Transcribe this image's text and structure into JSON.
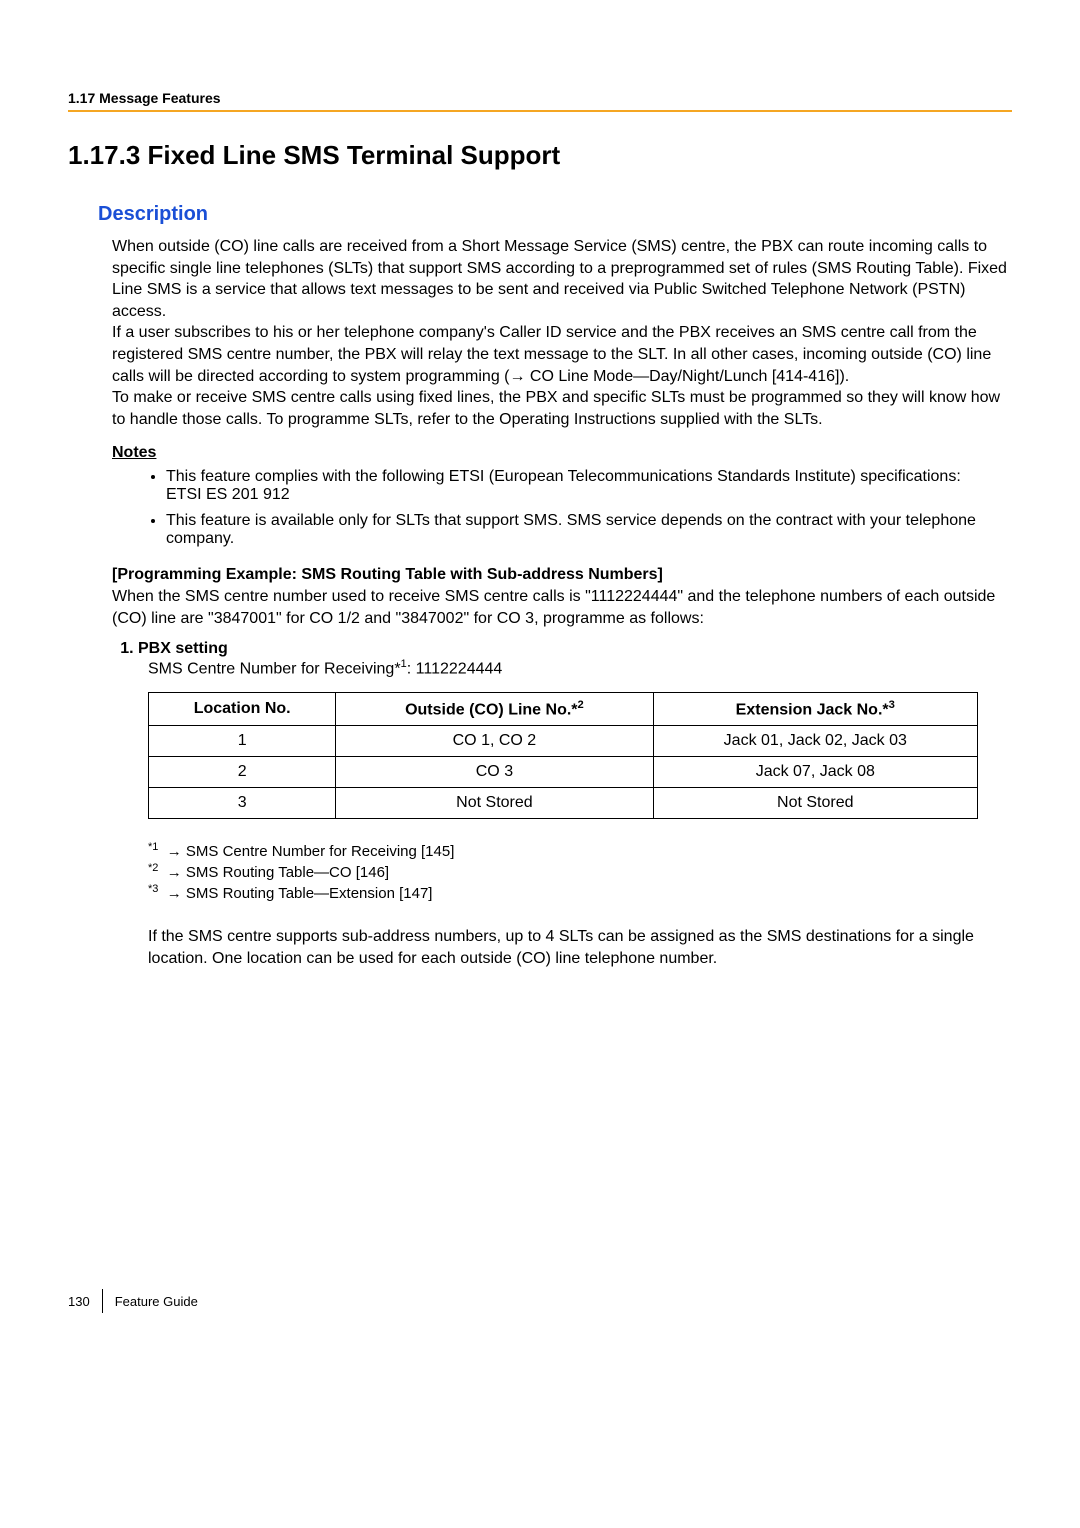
{
  "header": {
    "running": "1.17 Message Features",
    "title": "1.17.3  Fixed Line SMS Terminal Support",
    "subtitle": "Description"
  },
  "description": {
    "p1": "When outside (CO) line calls are received from a Short Message Service (SMS) centre, the PBX can route incoming calls to specific single line telephones (SLTs) that support SMS according to a preprogrammed set of rules (SMS Routing Table). Fixed Line SMS is a service that allows text messages to be sent and received via Public Switched Telephone Network (PSTN) access.",
    "p2a": "If a user subscribes to his or her telephone company's Caller ID service and the PBX receives an SMS centre call from the registered SMS centre number, the PBX will relay the text message to the SLT. In all other cases, incoming outside (CO) line calls will be directed according to system programming (",
    "p2b": " CO Line Mode—Day/Night/Lunch [414-416]).",
    "p3": "To make or receive SMS centre calls using fixed lines, the PBX and specific SLTs must be programmed so they will know how to handle those calls. To programme SLTs, refer to the Operating Instructions supplied with the SLTs."
  },
  "notes": {
    "heading": "Notes",
    "items": [
      "This feature complies with the following ETSI (European Telecommunications Standards Institute) specifications:\nETSI ES 201 912",
      "This feature is available only for SLTs that support SMS. SMS service depends on the contract with your telephone company."
    ]
  },
  "programming": {
    "heading": "[Programming Example: SMS Routing Table with Sub-address Numbers]",
    "intro": "When the SMS centre number used to receive SMS centre calls is \"1112224444\" and the telephone numbers of each outside (CO) line are \"3847001\" for CO 1/2 and \"3847002\" for CO 3, programme as follows:",
    "step_label": "PBX setting",
    "step_body_a": "SMS Centre Number for Receiving*",
    "step_body_sup": "1",
    "step_body_b": ": 1112224444"
  },
  "table": {
    "headers": {
      "c1": "Location No.",
      "c2_a": "Outside (CO) Line No.*",
      "c2_sup": "2",
      "c3_a": "Extension Jack No.*",
      "c3_sup": "3"
    },
    "rows": [
      {
        "c1": "1",
        "c2": "CO 1, CO 2",
        "c3": "Jack 01, Jack 02, Jack 03"
      },
      {
        "c1": "2",
        "c2": "CO 3",
        "c3": "Jack 07, Jack 08"
      },
      {
        "c1": "3",
        "c2": "Not Stored",
        "c3": "Not Stored"
      }
    ]
  },
  "footnotes": {
    "f1": {
      "sup": "*1",
      "text": " SMS Centre Number for Receiving [145]"
    },
    "f2": {
      "sup": "*2",
      "text": " SMS Routing Table—CO [146]"
    },
    "f3": {
      "sup": "*3",
      "text": " SMS Routing Table—Extension [147]"
    }
  },
  "postnote": "If the SMS centre supports sub-address numbers, up to 4 SLTs can be assigned as the SMS destinations for a single location. One location can be used for each outside (CO) line telephone number.",
  "footer": {
    "page": "130",
    "label": "Feature Guide"
  },
  "style": {
    "accent_rule_color": "#f5a623",
    "link_color": "#1a4fd6"
  }
}
